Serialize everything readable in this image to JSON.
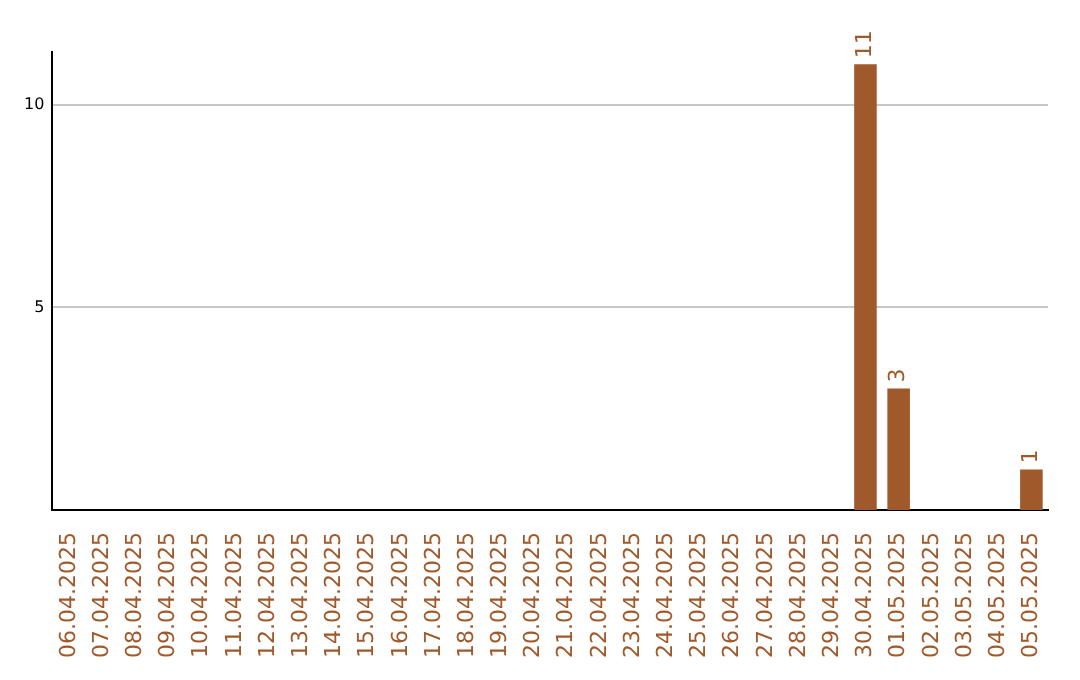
{
  "chart_data": {
    "type": "bar",
    "categories": [
      "06.04.2025",
      "07.04.2025",
      "08.04.2025",
      "09.04.2025",
      "10.04.2025",
      "11.04.2025",
      "12.04.2025",
      "13.04.2025",
      "14.04.2025",
      "15.04.2025",
      "16.04.2025",
      "17.04.2025",
      "18.04.2025",
      "19.04.2025",
      "20.04.2025",
      "21.04.2025",
      "22.04.2025",
      "23.04.2025",
      "24.04.2025",
      "25.04.2025",
      "26.04.2025",
      "27.04.2025",
      "28.04.2025",
      "29.04.2025",
      "30.04.2025",
      "01.05.2025",
      "02.05.2025",
      "03.05.2025",
      "04.05.2025",
      "05.05.2025"
    ],
    "values": [
      0,
      0,
      0,
      0,
      0,
      0,
      0,
      0,
      0,
      0,
      0,
      0,
      0,
      0,
      0,
      0,
      0,
      0,
      0,
      0,
      0,
      0,
      0,
      0,
      11,
      3,
      0,
      0,
      0,
      1
    ],
    "value_labels": [
      null,
      null,
      null,
      null,
      null,
      null,
      null,
      null,
      null,
      null,
      null,
      null,
      null,
      null,
      null,
      null,
      null,
      null,
      null,
      null,
      null,
      null,
      null,
      null,
      "11",
      "3",
      null,
      null,
      null,
      "1"
    ],
    "color": "#a0592a",
    "ylim": [
      0,
      11.3
    ],
    "yticks": [
      5,
      10
    ],
    "grid": "y",
    "legend": false
  }
}
